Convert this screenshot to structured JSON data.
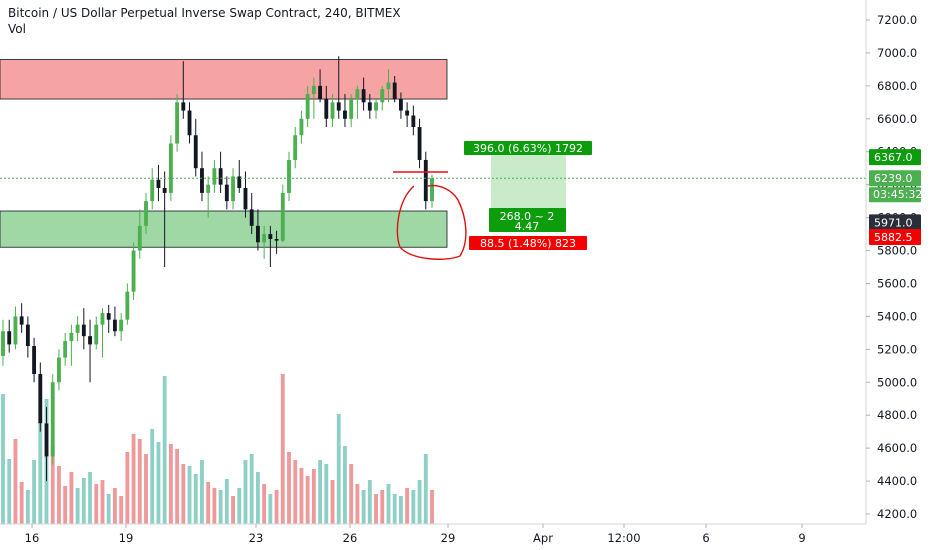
{
  "header": {
    "title": "Bitcoin / US Dollar Perpetual Inverse Swap Contract, 240, BITMEX",
    "volume_label": "Vol"
  },
  "colors": {
    "up": "#4caf50",
    "down": "#131722",
    "vol_up": "#8fd0c6",
    "vol_down": "#ef9a9a",
    "resistance_zone": "#f6a3a3",
    "support_zone": "#9fd7a5",
    "target_zone": "#c9ebc9",
    "price_line": "#4caf50",
    "stop_tag": "#f50000",
    "target_tag": "#0c9c0c",
    "annotation": "#e01010"
  },
  "chart_data": {
    "type": "candlestick",
    "title": "Bitcoin / US Dollar Perpetual Inverse Swap Contract, 240, BITMEX",
    "ylim": [
      4150,
      7320
    ],
    "y_ticks": [
      7200,
      7000,
      6800,
      6600,
      6400,
      6200,
      6000,
      5800,
      5600,
      5400,
      5200,
      5000,
      4800,
      4600,
      4400,
      4200
    ],
    "x_ticks": [
      {
        "label": "16",
        "pos": 32
      },
      {
        "label": "19",
        "pos": 126
      },
      {
        "label": "23",
        "pos": 256
      },
      {
        "label": "26",
        "pos": 350
      },
      {
        "label": "29",
        "pos": 448
      },
      {
        "label": "Apr",
        "pos": 543
      },
      {
        "label": "12:00",
        "pos": 624
      },
      {
        "label": "6",
        "pos": 706
      },
      {
        "label": "9",
        "pos": 802
      }
    ],
    "candles": [
      [
        5160,
        5380,
        5100,
        5310
      ],
      [
        5310,
        5380,
        5180,
        5230
      ],
      [
        5230,
        5460,
        5200,
        5400
      ],
      [
        5400,
        5480,
        5300,
        5350
      ],
      [
        5350,
        5400,
        5150,
        5220
      ],
      [
        5220,
        5270,
        5000,
        5050
      ],
      [
        5050,
        5120,
        4700,
        4750
      ],
      [
        4750,
        4850,
        4400,
        4550
      ],
      [
        4550,
        5050,
        4500,
        5000
      ],
      [
        5000,
        5200,
        4950,
        5150
      ],
      [
        5150,
        5300,
        5100,
        5250
      ],
      [
        5250,
        5350,
        5100,
        5300
      ],
      [
        5300,
        5400,
        5250,
        5350
      ],
      [
        5350,
        5450,
        5200,
        5280
      ],
      [
        5280,
        5380,
        5000,
        5230
      ],
      [
        5230,
        5400,
        5200,
        5350
      ],
      [
        5350,
        5450,
        5150,
        5420
      ],
      [
        5420,
        5470,
        5300,
        5380
      ],
      [
        5380,
        5460,
        5280,
        5310
      ],
      [
        5310,
        5420,
        5250,
        5380
      ],
      [
        5380,
        5600,
        5350,
        5550
      ],
      [
        5550,
        5850,
        5500,
        5800
      ],
      [
        5800,
        6050,
        5750,
        5950
      ],
      [
        5950,
        6150,
        5900,
        6100
      ],
      [
        6100,
        6300,
        6050,
        6230
      ],
      [
        6230,
        6320,
        6100,
        6180
      ],
      [
        6180,
        6280,
        5700,
        6150
      ],
      [
        6150,
        6500,
        6100,
        6450
      ],
      [
        6450,
        6750,
        6400,
        6700
      ],
      [
        6700,
        6950,
        6600,
        6650
      ],
      [
        6650,
        6700,
        6450,
        6500
      ],
      [
        6500,
        6600,
        6250,
        6300
      ],
      [
        6300,
        6400,
        6100,
        6150
      ],
      [
        6150,
        6250,
        6000,
        6200
      ],
      [
        6200,
        6350,
        6150,
        6300
      ],
      [
        6300,
        6400,
        6150,
        6200
      ],
      [
        6200,
        6250,
        6050,
        6100
      ],
      [
        6100,
        6300,
        6050,
        6250
      ],
      [
        6250,
        6350,
        6150,
        6180
      ],
      [
        6180,
        6280,
        6000,
        6050
      ],
      [
        6050,
        6150,
        5900,
        5950
      ],
      [
        5950,
        6050,
        5800,
        5850
      ],
      [
        5850,
        5950,
        5750,
        5900
      ],
      [
        5900,
        5950,
        5700,
        5870
      ],
      [
        5870,
        5920,
        5780,
        5860
      ],
      [
        5860,
        6200,
        5850,
        6150
      ],
      [
        6150,
        6400,
        6100,
        6350
      ],
      [
        6350,
        6550,
        6300,
        6500
      ],
      [
        6500,
        6650,
        6450,
        6600
      ],
      [
        6600,
        6800,
        6550,
        6750
      ],
      [
        6750,
        6850,
        6600,
        6800
      ],
      [
        6800,
        6900,
        6700,
        6720
      ],
      [
        6720,
        6800,
        6550,
        6600
      ],
      [
        6600,
        6750,
        6550,
        6700
      ],
      [
        6700,
        6980,
        6600,
        6650
      ],
      [
        6650,
        6750,
        6550,
        6600
      ],
      [
        6600,
        6750,
        6550,
        6720
      ],
      [
        6720,
        6800,
        6600,
        6780
      ],
      [
        6780,
        6850,
        6650,
        6700
      ],
      [
        6700,
        6750,
        6600,
        6650
      ],
      [
        6650,
        6720,
        6600,
        6700
      ],
      [
        6700,
        6800,
        6650,
        6780
      ],
      [
        6780,
        6900,
        6700,
        6820
      ],
      [
        6820,
        6860,
        6700,
        6720
      ],
      [
        6720,
        6760,
        6600,
        6650
      ],
      [
        6650,
        6700,
        6550,
        6620
      ],
      [
        6620,
        6680,
        6500,
        6550
      ],
      [
        6550,
        6600,
        6300,
        6350
      ],
      [
        6350,
        6400,
        6050,
        6100
      ],
      [
        6100,
        6260,
        6060,
        6239
      ]
    ],
    "volume": [
      [
        1,
        130
      ],
      [
        1,
        65
      ],
      [
        0,
        85
      ],
      [
        0,
        42
      ],
      [
        1,
        34
      ],
      [
        1,
        64
      ],
      [
        1,
        100
      ],
      [
        1,
        125
      ],
      [
        0,
        78
      ],
      [
        0,
        58
      ],
      [
        0,
        38
      ],
      [
        0,
        52
      ],
      [
        1,
        36
      ],
      [
        1,
        46
      ],
      [
        1,
        52
      ],
      [
        0,
        40
      ],
      [
        0,
        44
      ],
      [
        1,
        30
      ],
      [
        0,
        36
      ],
      [
        0,
        28
      ],
      [
        0,
        72
      ],
      [
        0,
        90
      ],
      [
        0,
        85
      ],
      [
        0,
        70
      ],
      [
        1,
        95
      ],
      [
        1,
        82
      ],
      [
        1,
        148
      ],
      [
        0,
        80
      ],
      [
        0,
        75
      ],
      [
        0,
        60
      ],
      [
        1,
        58
      ],
      [
        1,
        50
      ],
      [
        1,
        64
      ],
      [
        0,
        42
      ],
      [
        0,
        36
      ],
      [
        1,
        34
      ],
      [
        1,
        45
      ],
      [
        0,
        28
      ],
      [
        1,
        36
      ],
      [
        1,
        64
      ],
      [
        1,
        70
      ],
      [
        1,
        52
      ],
      [
        0,
        40
      ],
      [
        1,
        30
      ],
      [
        0,
        34
      ],
      [
        0,
        150
      ],
      [
        0,
        72
      ],
      [
        0,
        64
      ],
      [
        0,
        56
      ],
      [
        0,
        48
      ],
      [
        0,
        55
      ],
      [
        1,
        64
      ],
      [
        1,
        60
      ],
      [
        0,
        44
      ],
      [
        1,
        110
      ],
      [
        1,
        78
      ],
      [
        0,
        60
      ],
      [
        0,
        40
      ],
      [
        1,
        34
      ],
      [
        1,
        44
      ],
      [
        0,
        30
      ],
      [
        0,
        34
      ],
      [
        1,
        40
      ],
      [
        1,
        30
      ],
      [
        1,
        28
      ],
      [
        0,
        36
      ],
      [
        1,
        34
      ],
      [
        1,
        44
      ],
      [
        1,
        70
      ],
      [
        0,
        34
      ]
    ],
    "zones": {
      "resistance": [
        6720,
        6960
      ],
      "support": [
        5820,
        6040
      ],
      "target_box": [
        5985,
        6382
      ]
    },
    "current_price": 6239.0,
    "countdown": "03:45:32",
    "price_tags": [
      {
        "label": "6367.0",
        "value": 6367.0,
        "color": "#0c9c0c"
      },
      {
        "label": "6239.0",
        "value": 6239.0,
        "color": "#4caf50"
      },
      {
        "label": "5971.0",
        "value": 5971.0,
        "color": "#2a2e39"
      },
      {
        "label": "5882.5",
        "value": 5882.5,
        "color": "#f50000"
      }
    ],
    "annotations": {
      "target": "396.0 (6.63%) 1792",
      "entry_line1": "268.0 ~ 2",
      "entry_line2": "4.47",
      "stop": "88.5 (1.48%) 823"
    }
  }
}
